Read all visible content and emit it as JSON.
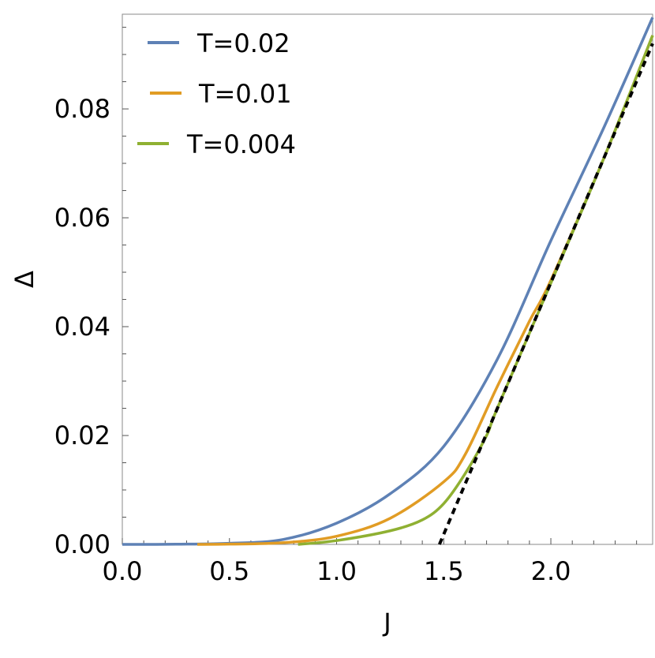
{
  "chart_data": {
    "type": "line",
    "title": "",
    "xlabel": "J",
    "ylabel": "Δ",
    "xlim": [
      0,
      2.475
    ],
    "ylim": [
      0,
      0.0974
    ],
    "x_ticks": [
      "0.0",
      "0.5",
      "1.0",
      "1.5",
      "2.0"
    ],
    "x_tick_values": [
      0,
      0.5,
      1.0,
      1.5,
      2.0
    ],
    "y_ticks": [
      "0.00",
      "0.02",
      "0.04",
      "0.06",
      "0.08"
    ],
    "y_tick_values": [
      0,
      0.02,
      0.04,
      0.06,
      0.08
    ],
    "grid": false,
    "legend_position": "top-left",
    "series": [
      {
        "name": "T=0.02",
        "color": "#5e81b5",
        "x": [
          0,
          0.25,
          0.5,
          0.75,
          1.0,
          1.25,
          1.5,
          1.75,
          2.0,
          2.25,
          2.475
        ],
        "y": [
          0,
          3e-05,
          0.0002,
          0.0009,
          0.0039,
          0.0093,
          0.018,
          0.034,
          0.0558,
          0.0768,
          0.0968
        ]
      },
      {
        "name": "T=0.01",
        "color": "#e19c24",
        "x": [
          0.35,
          0.5,
          0.75,
          1.0,
          1.25,
          1.5,
          1.6,
          1.75,
          1.9,
          2.0,
          2.25,
          2.475
        ],
        "y": [
          0,
          5e-05,
          0.0003,
          0.0015,
          0.0048,
          0.0115,
          0.0165,
          0.029,
          0.041,
          0.0485,
          0.0712,
          0.0935
        ]
      },
      {
        "name": "T=0.004",
        "color": "#8fb032",
        "x": [
          0.82,
          1.0,
          1.25,
          1.4,
          1.5,
          1.6,
          1.7,
          1.75,
          2.0,
          2.25,
          2.475
        ],
        "y": [
          0,
          0.0007,
          0.0025,
          0.0045,
          0.0075,
          0.013,
          0.02,
          0.025,
          0.048,
          0.0712,
          0.0935
        ]
      },
      {
        "name": "",
        "color": "#000000",
        "style": "dashed",
        "x": [
          1.48,
          2.475
        ],
        "y": [
          0,
          0.092
        ]
      }
    ]
  }
}
